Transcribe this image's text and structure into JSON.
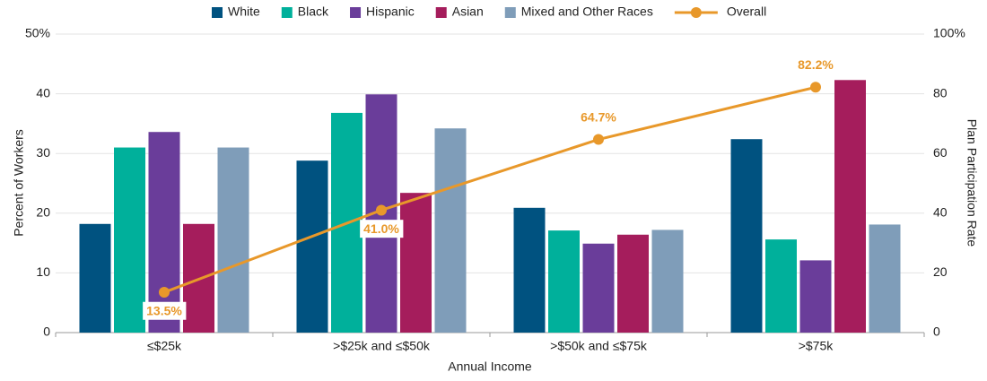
{
  "chart_data": {
    "type": "bar",
    "x_label": "Annual Income",
    "y_label": "Percent of Workers",
    "y2_label": "Plan Participation Rate",
    "categories": [
      "≤$25k",
      ">$25k and ≤$50k",
      ">$50k and ≤$75k",
      ">$75k"
    ],
    "series": [
      {
        "name": "White",
        "color": "#005280",
        "values": [
          18.2,
          28.8,
          20.9,
          32.4
        ]
      },
      {
        "name": "Black",
        "color": "#00b09b",
        "values": [
          31.0,
          36.8,
          17.1,
          15.6
        ]
      },
      {
        "name": "Hispanic",
        "color": "#6a3d9a",
        "values": [
          33.6,
          39.9,
          14.9,
          12.1
        ]
      },
      {
        "name": "Asian",
        "color": "#a51d5c",
        "values": [
          18.2,
          23.4,
          16.4,
          42.3
        ]
      },
      {
        "name": "Mixed and Other Races",
        "color": "#7f9db9",
        "values": [
          31.0,
          34.2,
          17.2,
          18.1
        ]
      },
      {
        "name": "Overall",
        "type": "line",
        "axis": "y2",
        "color": "#e8982a",
        "values": [
          13.5,
          41.0,
          64.7,
          82.2
        ],
        "value_labels": [
          "13.5%",
          "41.0%",
          "64.7%",
          "82.2%"
        ]
      }
    ],
    "ylim": [
      0,
      50
    ],
    "yticks": [
      0,
      10,
      20,
      30,
      40,
      {
        "value": 50,
        "label": "50%"
      }
    ],
    "y2lim": [
      0,
      100
    ],
    "y2ticks": [
      0,
      20,
      40,
      60,
      80,
      {
        "value": 100,
        "label": "100%"
      }
    ],
    "grid": true,
    "legend": "top"
  }
}
